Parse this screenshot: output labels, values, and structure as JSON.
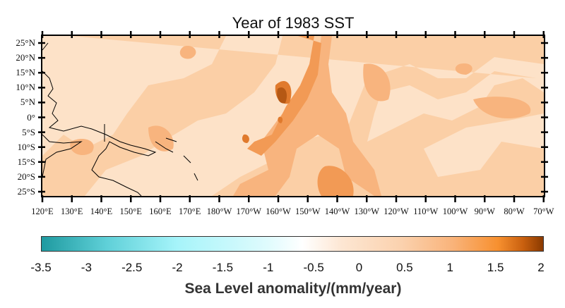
{
  "title": "Year of 1983 SST",
  "map": {
    "region": "Tropical Pacific",
    "lat_ticks": [
      "25°N",
      "20°N",
      "15°N",
      "10°N",
      "5°N",
      "0°",
      "5°S",
      "10°S",
      "15°S",
      "20°S",
      "25°S"
    ],
    "lon_ticks": [
      "120°E",
      "130°E",
      "140°E",
      "150°E",
      "160°E",
      "170°E",
      "180°W",
      "170°W",
      "160°W",
      "150°W",
      "140°W",
      "130°W",
      "120°W",
      "110°W",
      "100°W",
      "90°W",
      "80°W",
      "70°W"
    ]
  },
  "colorbar": {
    "label": "Sea Level anomality/(mm/year)",
    "ticks": [
      "-3.5",
      "-3",
      "-2.5",
      "-2",
      "-1.5",
      "-1",
      "-0.5",
      "0",
      "0.5",
      "1",
      "1.5",
      "2"
    ],
    "range": [
      -3.5,
      2
    ],
    "colors": {
      "min": "#1f9aa0",
      "low": "#a6f4fa",
      "mid": "#ffffff",
      "high": "#f7902f",
      "max": "#8a3a00"
    }
  }
}
